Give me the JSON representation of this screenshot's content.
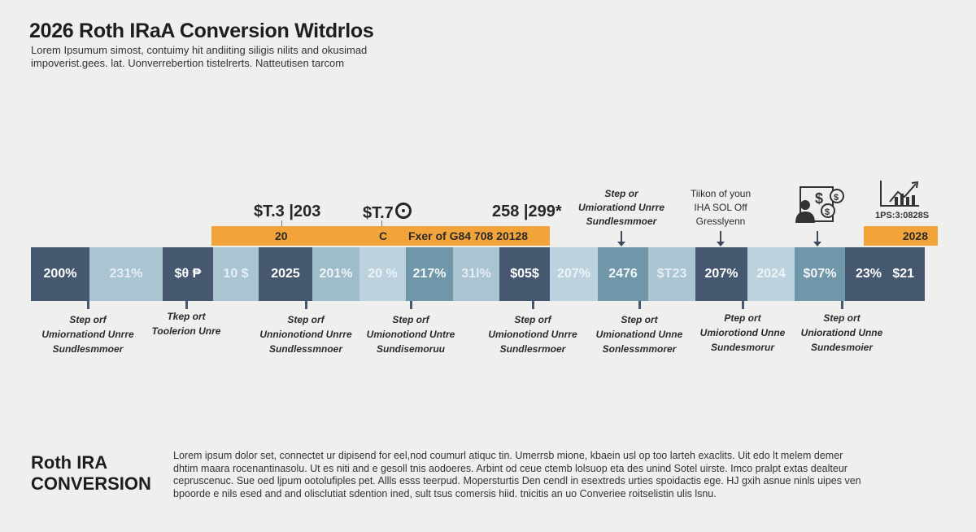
{
  "header": {
    "title": "2026 Roth IRaA Conversion Witdrlos",
    "subtitle_lines": [
      "Lorem Ipsumum simost, contuimy hit andiiting siligis nilits and okusimad",
      "impoverist.gees. lat. Uonverrebertion tistelrerts. Natteutisen tarcom"
    ]
  },
  "timeline": {
    "segments": [
      {
        "label": "200%",
        "tone": "dark"
      },
      {
        "label": "231%",
        "tone": "light"
      },
      {
        "label": "$θ ₱",
        "tone": "dark"
      },
      {
        "label": "10 $",
        "tone": "light"
      },
      {
        "label": "2025",
        "tone": "dark"
      },
      {
        "label": "201%",
        "tone": "mlight"
      },
      {
        "label": "20 %",
        "tone": "lighter"
      },
      {
        "label": "217%",
        "tone": "medium"
      },
      {
        "label": "31l%",
        "tone": "light"
      },
      {
        "label": "$05$",
        "tone": "dark"
      },
      {
        "label": "207%",
        "tone": "lighter"
      },
      {
        "label": "2476",
        "tone": "medium"
      },
      {
        "label": "$T23",
        "tone": "light"
      },
      {
        "label": "207%",
        "tone": "dark"
      },
      {
        "label": "2024",
        "tone": "lighter"
      },
      {
        "label": "$07%",
        "tone": "medium"
      },
      {
        "label": "23%   $21",
        "tone": "dark"
      }
    ],
    "orange_bar": {
      "labels": [
        "20",
        "C",
        "Fxer of G84 708 20128"
      ]
    },
    "orange_bar_right": {
      "label": "2028"
    },
    "values_above": [
      "$T.3 |203",
      "$T.7",
      "258 |299*"
    ],
    "captions": [
      {
        "lines": [
          "Step orf",
          "Umiornationd Unrre",
          "Sundlesmmoer"
        ]
      },
      {
        "lines": [
          "Tkep ort",
          "Toolerion Unre"
        ]
      },
      {
        "lines": [
          "Step orf",
          "Unnionotiond Unrre",
          "Sundlessmnoer"
        ]
      },
      {
        "lines": [
          "Step orf",
          "Umionotiond Untre",
          "Sundisemoruu"
        ]
      },
      {
        "lines": [
          "Step orf",
          "Umionotiond Unrre",
          "Sundlesrmoer"
        ]
      },
      {
        "lines": [
          "Step ort",
          "Umionationd Unne",
          "Sonlessmmorer"
        ]
      },
      {
        "lines": [
          "Ptep ort",
          "Umiorotiond Unne",
          "Sundesmorur"
        ]
      },
      {
        "lines": [
          "Step ort",
          "Uniorationd Unne",
          "Sundesmoier"
        ]
      }
    ],
    "annotations": [
      {
        "lines": [
          "Step or",
          "Umiorationd Unrre",
          "Sundlesmmoer"
        ]
      },
      {
        "lines": [
          "Tiikon of youn",
          "IHA SOL Off",
          "Gresslyenn"
        ]
      }
    ],
    "icon_labels": {
      "chart": "1PS:3:0828S"
    }
  },
  "footer": {
    "heading_lines": [
      "Roth IRA",
      "CONVERSION"
    ],
    "body_lines": [
      "Lorem ipsum dolor set, connectet ur dipisend for eel,nod coumurl atiquc tin. Umerrsb mione, kbaein usl op too larteh exaclits. Uit edo lt melem demer",
      "dhtim maara rocenantinasolu. Ut es niti and e gesoll tnis aodoeres. Arbint od ceue ctemb lolsuop eta des unind Sotel uirste. Imco pralpt extas dealteur",
      "cepruscenuc. Sue oed ljpum ootolufiples pet. Allls esss teerpud. Mopersturtis Den cendl in esextreds urties spoidactis ege. HJ gxih asnue ninls uipes ven",
      "bpoorde e nils esed and and olisclutiat sdention ined, sult tsus comersis hiid. tnicitis an uo Converiee roitselistin ulis lsnu."
    ]
  },
  "colors": {
    "dark": "#46586f",
    "light": "#aac4d2",
    "medium": "#7097a9",
    "orange": "#f2a43a",
    "background": "#efefed"
  }
}
